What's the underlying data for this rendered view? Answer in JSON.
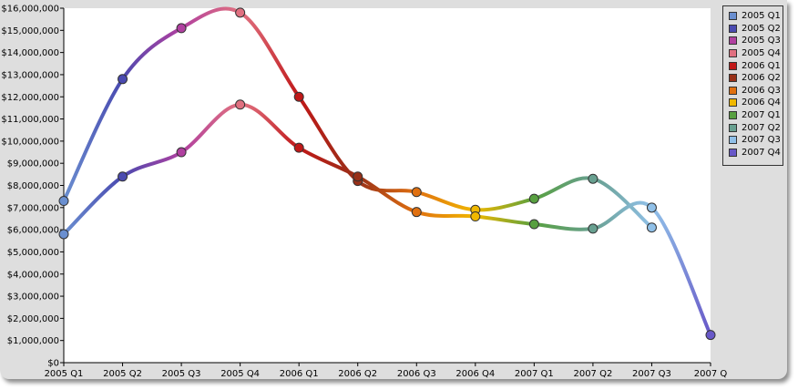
{
  "chart_data": {
    "type": "line",
    "categories": [
      "2005 Q1",
      "2005 Q2",
      "2005 Q3",
      "2005 Q4",
      "2006 Q1",
      "2006 Q2",
      "2006 Q3",
      "2006 Q4",
      "2007 Q1",
      "2007 Q2",
      "2007 Q3",
      "2007 Q4"
    ],
    "category_tick_labels": [
      "2005 Q1",
      "2005 Q2",
      "2005 Q3",
      "2005 Q4",
      "2006 Q1",
      "2006 Q2",
      "2006 Q3",
      "2006 Q4",
      "2007 Q1",
      "2007 Q2",
      "2007 Q3",
      "2007 Q"
    ],
    "series": [
      {
        "values": [
          7300000,
          12800000,
          15100000,
          15800000,
          12000000,
          8200000,
          7700000,
          6900000,
          7400000,
          8300000,
          6100000,
          null
        ]
      },
      {
        "values": [
          5800000,
          8400000,
          9500000,
          11650000,
          9700000,
          8400000,
          6800000,
          6600000,
          6250000,
          6050000,
          7000000,
          1250000
        ]
      }
    ],
    "ylim": [
      0,
      16000000
    ],
    "y_ticks": [
      0,
      1000000,
      2000000,
      3000000,
      4000000,
      5000000,
      6000000,
      7000000,
      8000000,
      9000000,
      10000000,
      11000000,
      12000000,
      13000000,
      14000000,
      15000000,
      16000000
    ],
    "y_tick_labels": [
      "$0",
      "$1,000,000",
      "$2,000,000",
      "$3,000,000",
      "$4,000,000",
      "$5,000,000",
      "$6,000,000",
      "$7,000,000",
      "$8,000,000",
      "$9,000,000",
      "$10,000,000",
      "$11,000,000",
      "$12,000,000",
      "$13,000,000",
      "$14,000,000",
      "$15,000,000",
      "$16,000,000"
    ],
    "grid": false,
    "legend": {
      "placement": "right",
      "items": [
        {
          "label": "2005 Q1",
          "color": "#6a8fd0"
        },
        {
          "label": "2005 Q2",
          "color": "#4a4ab0"
        },
        {
          "label": "2005 Q3",
          "color": "#b040a0"
        },
        {
          "label": "2005 Q4",
          "color": "#e07080"
        },
        {
          "label": "2006 Q1",
          "color": "#c01818"
        },
        {
          "label": "2006 Q2",
          "color": "#983018"
        },
        {
          "label": "2006 Q3",
          "color": "#e07010"
        },
        {
          "label": "2006 Q4",
          "color": "#f0b800"
        },
        {
          "label": "2007 Q1",
          "color": "#58a040"
        },
        {
          "label": "2007 Q2",
          "color": "#68a090"
        },
        {
          "label": "2007 Q3",
          "color": "#90c0e8"
        },
        {
          "label": "2007 Q4",
          "color": "#6858c8"
        }
      ]
    }
  }
}
